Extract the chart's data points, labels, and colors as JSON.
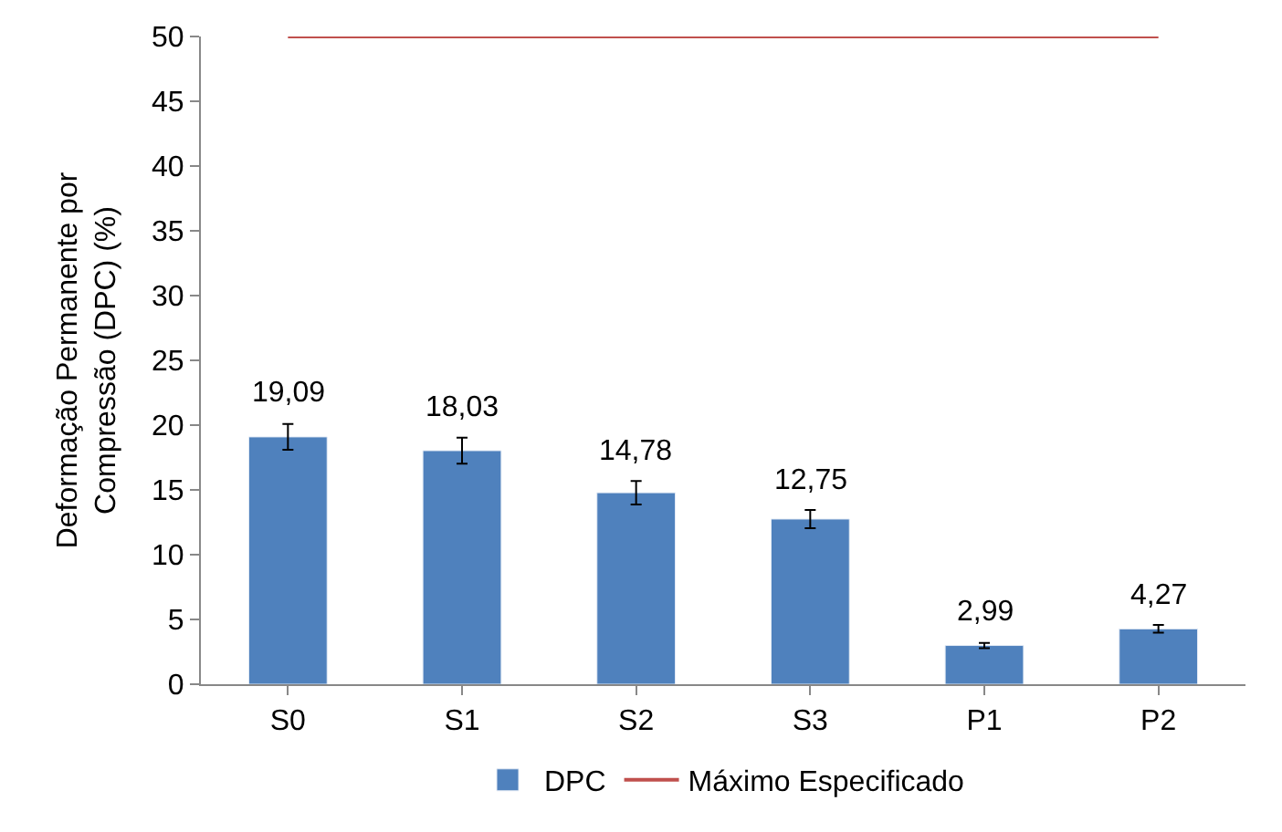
{
  "chart_data": {
    "type": "bar",
    "ylabel": "Deformação Permanente por Compressão (DPC) (%)",
    "categories": [
      "S0",
      "S1",
      "S2",
      "S3",
      "P1",
      "P2"
    ],
    "series": [
      {
        "name": "DPC",
        "color": "#4f81bd",
        "values": [
          19.09,
          18.03,
          14.78,
          12.75,
          2.99,
          4.27
        ],
        "errors": [
          1.0,
          1.0,
          0.9,
          0.7,
          0.2,
          0.3
        ],
        "value_labels": [
          "19,09",
          "18,03",
          "14,78",
          "12,75",
          "2,99",
          "4,27"
        ]
      },
      {
        "name": "Máximo Especificado",
        "type": "line",
        "color": "#c0504d",
        "values": [
          50,
          50,
          50,
          50,
          50,
          50
        ],
        "marker": "none"
      }
    ],
    "ylim": [
      0,
      50
    ],
    "yticks": [
      0,
      5,
      10,
      15,
      20,
      25,
      30,
      35,
      40,
      45,
      50
    ],
    "legend": "bottom"
  }
}
